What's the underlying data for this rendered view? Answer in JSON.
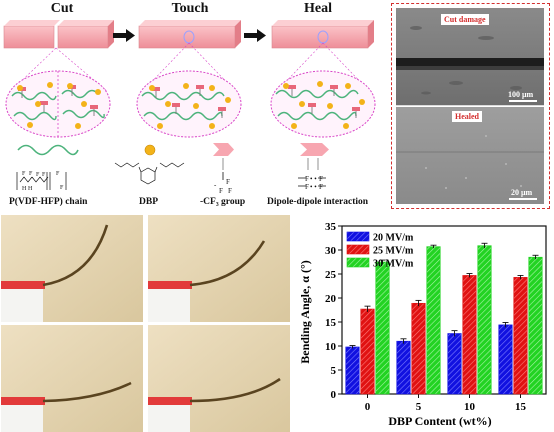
{
  "stages": {
    "cut": "Cut",
    "touch": "Touch",
    "heal": "Heal"
  },
  "legend": {
    "chain": "P(VDF-HFP) chain",
    "dbp": "DBP",
    "cf3": "-CF₃ group",
    "dipole": "Dipole-dipole interaction"
  },
  "sem": {
    "top_label": "Cut damage",
    "bottom_label": "Healed",
    "top_scale": "100 μm",
    "bottom_scale": "20 μm"
  },
  "colors": {
    "film": "#f6a7ae",
    "dbp": "#f3b319",
    "chain": "#4db37c",
    "group": "#e8677a",
    "circle": "#d946c8",
    "sem_frame": "#d32f2f"
  },
  "chart_data": {
    "type": "bar",
    "xlabel": "DBP Content (wt%)",
    "ylabel": "Bending Angle, α (°)",
    "categories": [
      "0",
      "5",
      "10",
      "15"
    ],
    "ylim": [
      0,
      35
    ],
    "yticks": [
      0,
      5,
      10,
      15,
      20,
      25,
      30,
      35
    ],
    "legend_position": "top-left",
    "series": [
      {
        "name": "20 MV/m",
        "color": "#1111e0",
        "values": [
          9.8,
          11.0,
          12.6,
          14.4
        ]
      },
      {
        "name": "25 MV/m",
        "color": "#e01212",
        "values": [
          17.7,
          18.9,
          24.7,
          24.3
        ]
      },
      {
        "name": "30 MV/m",
        "color": "#22d322",
        "values": [
          27.5,
          30.7,
          30.9,
          28.5
        ]
      }
    ],
    "errors": [
      [
        0.3,
        0.5,
        0.6,
        0.5
      ],
      [
        0.6,
        0.6,
        0.4,
        0.4
      ],
      [
        0.4,
        0.3,
        0.5,
        0.4
      ]
    ]
  }
}
